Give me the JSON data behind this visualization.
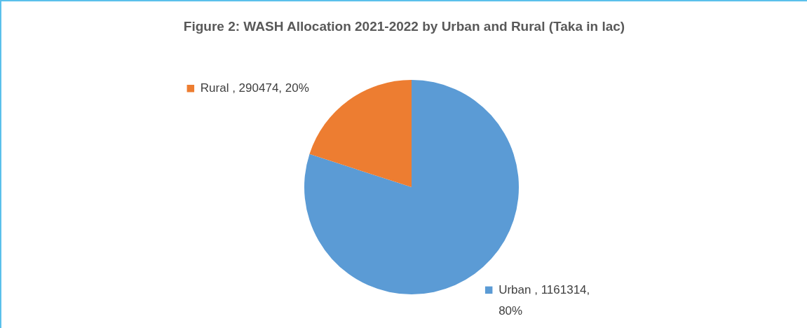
{
  "chart_data": {
    "type": "pie",
    "title": "Figure 2: WASH Allocation 2021-2022 by Urban and Rural (Taka in lac)",
    "categories": [
      "Urban",
      "Rural"
    ],
    "values": [
      1161314,
      290474
    ],
    "colors": [
      "#5b9bd5",
      "#ed7d31"
    ],
    "value_labels": [
      "1161314, 80%",
      "290474, 20%"
    ],
    "legend": "bottom left"
  }
}
